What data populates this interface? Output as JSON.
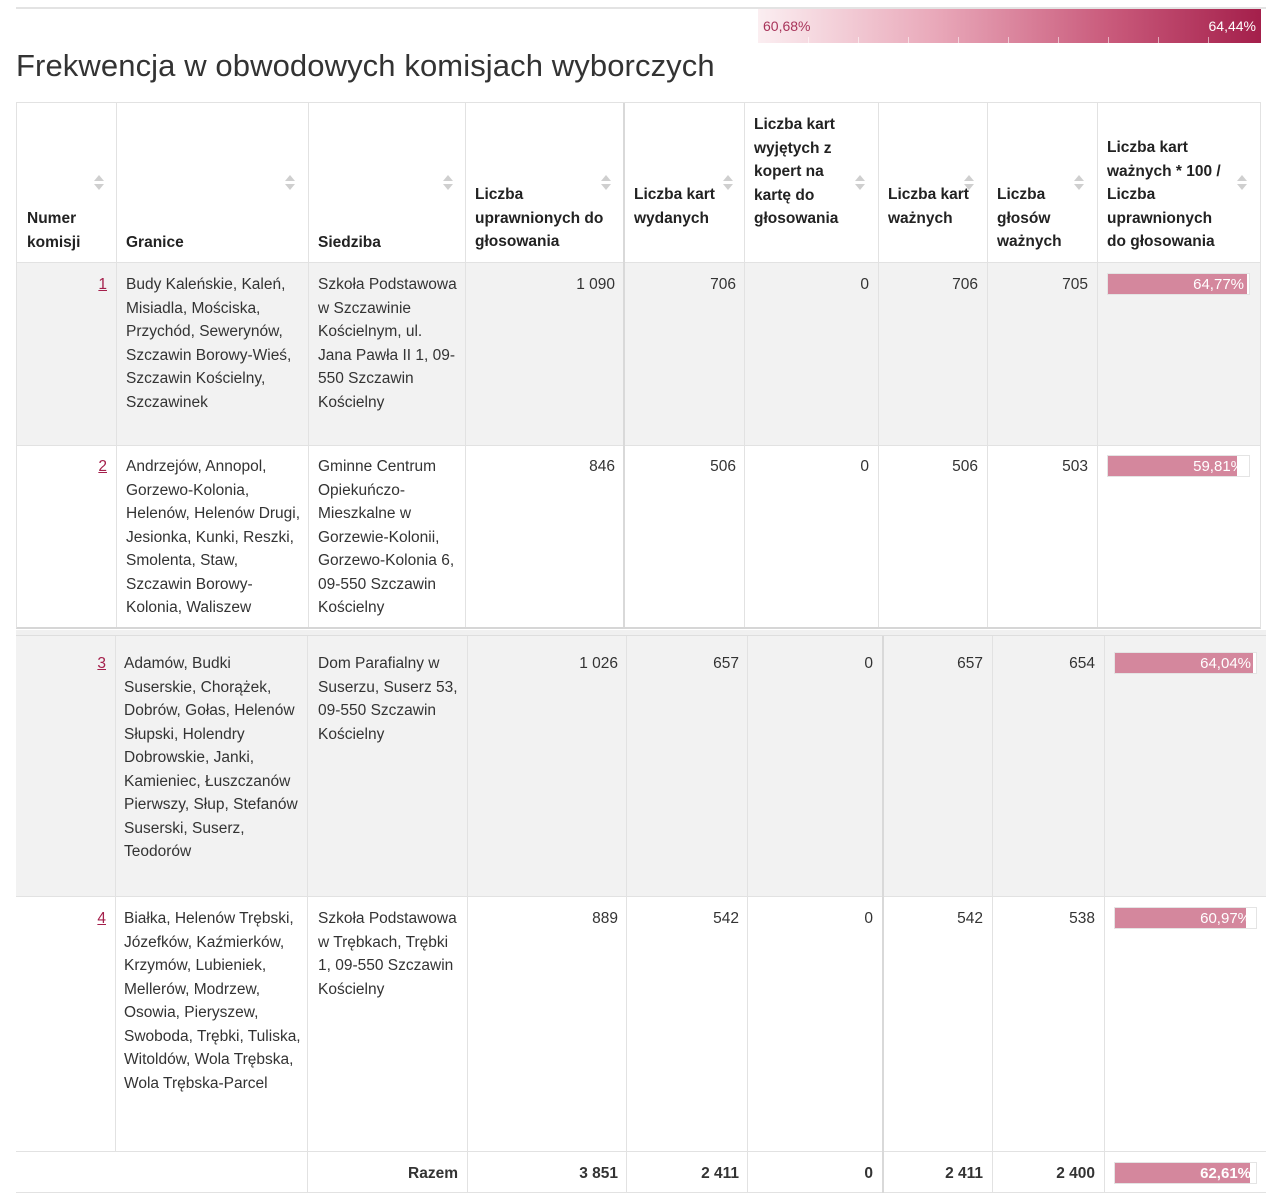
{
  "legend": {
    "min": "60,68%",
    "max": "64,44%",
    "colors": {
      "low": "#fbeef1",
      "high": "#a41f4b"
    }
  },
  "title": "Frekwencja w obwodowych komisjach wyborczych",
  "table": {
    "headers": {
      "numer": "Numer komisji",
      "granice": "Granice",
      "siedziba": "Siedziba",
      "uprawnionych": "Liczba uprawnionych do głosowania",
      "wydanych": "Liczba kart wydanych",
      "wyjetych": "Liczba kart wyjętych z kopert na kartę do głosowania",
      "waznych_kart": "Liczba kart ważnych",
      "waznych_glosow": "Liczba głosów ważnych",
      "frekwencja": "Liczba kart ważnych * 100 / Liczba uprawnionych do głosowania"
    },
    "rows": [
      {
        "numer": "1",
        "granice": "Budy Kaleńskie, Kaleń, Misiadla, Mościska, Przychód, Sewerynów, Szczawin Borowy-Wieś, Szczawin Kościelny, Szczawinek",
        "siedziba": "Szkoła Podstawowa w Szczawinie Kościelnym, ul. Jana Pawła II 1, 09-550 Szczawin Kościelny",
        "uprawnionych": "1 090",
        "wydanych": "706",
        "wyjetych": "0",
        "waznych_kart": "706",
        "waznych_glosow": "705",
        "frekwencja": "64,77%",
        "frekwencja_value": 64.77
      },
      {
        "numer": "2",
        "granice": "Andrzejów, Annopol, Gorzewo-Kolonia, Helenów, Helenów Drugi, Jesionka, Kunki, Reszki, Smolenta, Staw, Szczawin Borowy-Kolonia, Waliszew",
        "siedziba": "Gminne Centrum Opiekuńczo-Mieszkalne w Gorzewie-Kolonii, Gorzewo-Kolonia 6, 09-550 Szczawin Kościelny",
        "uprawnionych": "846",
        "wydanych": "506",
        "wyjetych": "0",
        "waznych_kart": "506",
        "waznych_glosow": "503",
        "frekwencja": "59,81%",
        "frekwencja_value": 59.81
      },
      {
        "numer": "3",
        "granice": "Adamów, Budki Suserskie, Chorążek, Dobrów, Gołas, Helenów Słupski, Holendry Dobrowskie, Janki, Kamieniec, Łuszczanów Pierwszy, Słup, Stefanów Suserski, Suserz, Teodorów",
        "siedziba": "Dom Parafialny w Suserzu, Suserz 53, 09-550 Szczawin Kościelny",
        "uprawnionych": "1 026",
        "wydanych": "657",
        "wyjetych": "0",
        "waznych_kart": "657",
        "waznych_glosow": "654",
        "frekwencja": "64,04%",
        "frekwencja_value": 64.04
      },
      {
        "numer": "4",
        "granice": "Białka, Helenów Trębski, Józefków, Kaźmierków, Krzymów, Lubieniek, Mellerów, Modrzew, Osowia, Pieryszew, Swoboda, Trębki, Tuliska, Witoldów, Wola Trębska, Wola Trębska-Parcel",
        "siedziba": "Szkoła Podstawowa w Trębkach, Trębki 1, 09-550 Szczawin Kościelny",
        "uprawnionych": "889",
        "wydanych": "542",
        "wyjetych": "0",
        "waznych_kart": "542",
        "waznych_glosow": "538",
        "frekwencja": "60,97%",
        "frekwencja_value": 60.97
      }
    ],
    "total": {
      "label": "Razem",
      "uprawnionych": "3 851",
      "wydanych": "2 411",
      "wyjetych": "0",
      "waznych_kart": "2 411",
      "waznych_glosow": "2 400",
      "frekwencja": "62,61%",
      "frekwencja_value": 62.61
    }
  }
}
